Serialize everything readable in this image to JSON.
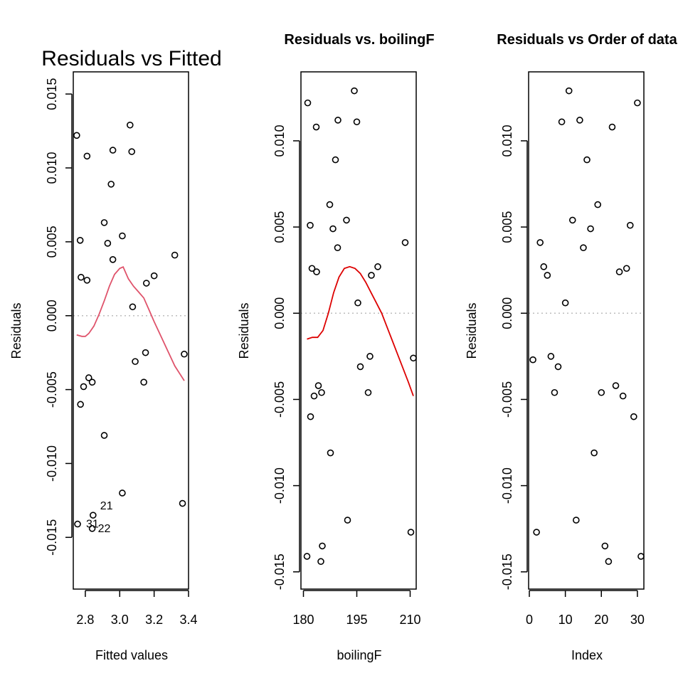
{
  "chart_data": [
    {
      "type": "scatter",
      "title": "Residuals vs Fitted",
      "xlabel": "Fitted values",
      "ylabel": "Residuals",
      "xlim": [
        2.73,
        3.4
      ],
      "ylim": [
        -0.0185,
        0.0165
      ],
      "xticks": [
        2.8,
        3.0,
        3.2,
        3.4
      ],
      "xtick_labels": [
        "2.8",
        "3.0",
        "3.2",
        "3.4"
      ],
      "yticks": [
        -0.015,
        -0.01,
        -0.005,
        0.0,
        0.005,
        0.01,
        0.015
      ],
      "ytick_labels": [
        "-0.015",
        "-0.010",
        "-0.005",
        "0.000",
        "0.005",
        "0.010",
        "0.015"
      ],
      "reference_line": 0,
      "points": [
        {
          "x": 2.75,
          "y": 0.0122
        },
        {
          "x": 2.755,
          "y": -0.0141
        },
        {
          "x": 2.77,
          "y": 0.0051
        },
        {
          "x": 2.775,
          "y": 0.0026
        },
        {
          "x": 2.772,
          "y": -0.006
        },
        {
          "x": 2.79,
          "y": -0.0048
        },
        {
          "x": 2.81,
          "y": 0.0108
        },
        {
          "x": 2.81,
          "y": 0.0024
        },
        {
          "x": 2.82,
          "y": -0.0042
        },
        {
          "x": 2.84,
          "y": -0.0045
        },
        {
          "x": 2.845,
          "y": -0.0135
        },
        {
          "x": 2.84,
          "y": -0.0144
        },
        {
          "x": 2.91,
          "y": 0.0063
        },
        {
          "x": 2.91,
          "y": -0.0081
        },
        {
          "x": 2.93,
          "y": 0.0049
        },
        {
          "x": 2.95,
          "y": 0.0089
        },
        {
          "x": 2.96,
          "y": 0.0112
        },
        {
          "x": 2.96,
          "y": 0.0038
        },
        {
          "x": 3.015,
          "y": 0.0054
        },
        {
          "x": 3.015,
          "y": -0.012
        },
        {
          "x": 3.06,
          "y": 0.0129
        },
        {
          "x": 3.07,
          "y": 0.0111
        },
        {
          "x": 3.075,
          "y": 0.0006
        },
        {
          "x": 3.09,
          "y": -0.0031
        },
        {
          "x": 3.14,
          "y": -0.0045
        },
        {
          "x": 3.15,
          "y": -0.0025
        },
        {
          "x": 3.155,
          "y": 0.0022
        },
        {
          "x": 3.2,
          "y": 0.0027
        },
        {
          "x": 3.32,
          "y": 0.0041
        },
        {
          "x": 3.365,
          "y": -0.0127
        },
        {
          "x": 3.375,
          "y": -0.0026
        }
      ],
      "point_labels": [
        {
          "x": 2.845,
          "y": -0.0135,
          "text": "21"
        },
        {
          "x": 2.84,
          "y": -0.0144,
          "text": "22"
        },
        {
          "x": 2.755,
          "y": -0.0141,
          "text": "31"
        }
      ],
      "smoother": {
        "color": "#DF536B",
        "x": [
          2.75,
          2.78,
          2.8,
          2.82,
          2.85,
          2.88,
          2.91,
          2.94,
          2.97,
          3.0,
          3.02,
          3.05,
          3.08,
          3.11,
          3.14,
          3.17,
          3.2,
          3.24,
          3.28,
          3.32,
          3.375
        ],
        "y": [
          -0.0013,
          -0.0014,
          -0.0014,
          -0.0012,
          -0.0007,
          0.0001,
          0.001,
          0.002,
          0.0028,
          0.0032,
          0.0033,
          0.0025,
          0.002,
          0.0016,
          0.0012,
          0.0004,
          -0.0004,
          -0.0014,
          -0.0024,
          -0.0034,
          -0.0044
        ]
      }
    },
    {
      "type": "scatter",
      "title": "Residuals vs. boilingF",
      "xlabel": "boilingF",
      "ylabel": "Residuals",
      "xlim": [
        179.3,
        211.7
      ],
      "ylim": [
        -0.016,
        0.014
      ],
      "xticks": [
        180,
        195,
        210
      ],
      "xtick_labels": [
        "180",
        "195",
        "210"
      ],
      "yticks": [
        -0.015,
        -0.01,
        -0.005,
        0.0,
        0.005,
        0.01
      ],
      "ytick_labels": [
        "-0.015",
        "-0.010",
        "-0.005",
        "0.000",
        "0.005",
        "0.010"
      ],
      "reference_line": 0,
      "points": [
        {
          "x": 181.0,
          "y": -0.0141
        },
        {
          "x": 181.2,
          "y": 0.0122
        },
        {
          "x": 181.9,
          "y": 0.0051
        },
        {
          "x": 182.0,
          "y": -0.006
        },
        {
          "x": 182.4,
          "y": 0.0026
        },
        {
          "x": 183.0,
          "y": -0.0048
        },
        {
          "x": 183.6,
          "y": 0.0108
        },
        {
          "x": 183.7,
          "y": 0.0024
        },
        {
          "x": 184.2,
          "y": -0.0042
        },
        {
          "x": 184.9,
          "y": -0.0144
        },
        {
          "x": 185.1,
          "y": -0.0046
        },
        {
          "x": 185.3,
          "y": -0.0135
        },
        {
          "x": 187.4,
          "y": 0.0063
        },
        {
          "x": 187.6,
          "y": -0.0081
        },
        {
          "x": 188.3,
          "y": 0.0049
        },
        {
          "x": 189.0,
          "y": 0.0089
        },
        {
          "x": 189.6,
          "y": 0.0038
        },
        {
          "x": 189.7,
          "y": 0.0112
        },
        {
          "x": 192.1,
          "y": 0.0054
        },
        {
          "x": 192.4,
          "y": -0.012
        },
        {
          "x": 194.3,
          "y": 0.0129
        },
        {
          "x": 195.0,
          "y": 0.0111
        },
        {
          "x": 195.3,
          "y": 0.0006
        },
        {
          "x": 196.0,
          "y": -0.0031
        },
        {
          "x": 198.2,
          "y": -0.0046
        },
        {
          "x": 198.7,
          "y": -0.0025
        },
        {
          "x": 199.1,
          "y": 0.0022
        },
        {
          "x": 200.9,
          "y": 0.0027
        },
        {
          "x": 208.6,
          "y": 0.0041
        },
        {
          "x": 210.2,
          "y": -0.0127
        },
        {
          "x": 210.9,
          "y": -0.0026
        }
      ],
      "smoother": {
        "color": "#DD0000",
        "x": [
          181.0,
          182.5,
          184.0,
          185.5,
          187.0,
          188.5,
          190.0,
          191.5,
          193.0,
          194.5,
          196.0,
          197.5,
          199.0,
          200.5,
          202.0,
          203.5,
          205.0,
          206.5,
          208.0,
          209.5,
          210.9
        ],
        "y": [
          -0.0015,
          -0.0014,
          -0.0014,
          -0.001,
          0.0,
          0.0012,
          0.0021,
          0.0026,
          0.0027,
          0.0026,
          0.0023,
          0.0018,
          0.0012,
          0.0006,
          0.0,
          -0.0008,
          -0.0016,
          -0.0024,
          -0.0032,
          -0.004,
          -0.0048
        ]
      }
    },
    {
      "type": "scatter",
      "title": "Residuals vs Order of data",
      "xlabel": "Index",
      "ylabel": "Residuals",
      "xlim": [
        -0.2,
        31.8
      ],
      "ylim": [
        -0.016,
        0.014
      ],
      "xticks": [
        0,
        10,
        20,
        30
      ],
      "xtick_labels": [
        "0",
        "10",
        "20",
        "30"
      ],
      "yticks": [
        -0.015,
        -0.01,
        -0.005,
        0.0,
        0.005,
        0.01
      ],
      "ytick_labels": [
        "-0.015",
        "-0.010",
        "-0.005",
        "0.000",
        "0.005",
        "0.010"
      ],
      "reference_line": 0,
      "points": [
        {
          "x": 1,
          "y": -0.0027
        },
        {
          "x": 2,
          "y": -0.0127
        },
        {
          "x": 3,
          "y": 0.0041
        },
        {
          "x": 4,
          "y": 0.0027
        },
        {
          "x": 5,
          "y": 0.0022
        },
        {
          "x": 6,
          "y": -0.0025
        },
        {
          "x": 7,
          "y": -0.0046
        },
        {
          "x": 8,
          "y": -0.0031
        },
        {
          "x": 9,
          "y": 0.0111
        },
        {
          "x": 10,
          "y": 0.0006
        },
        {
          "x": 11,
          "y": 0.0129
        },
        {
          "x": 12,
          "y": 0.0054
        },
        {
          "x": 13,
          "y": -0.012
        },
        {
          "x": 14,
          "y": 0.0112
        },
        {
          "x": 15,
          "y": 0.0038
        },
        {
          "x": 16,
          "y": 0.0089
        },
        {
          "x": 17,
          "y": 0.0049
        },
        {
          "x": 18,
          "y": -0.0081
        },
        {
          "x": 19,
          "y": 0.0063
        },
        {
          "x": 20,
          "y": -0.0046
        },
        {
          "x": 21,
          "y": -0.0135
        },
        {
          "x": 22,
          "y": -0.0144
        },
        {
          "x": 23,
          "y": 0.0108
        },
        {
          "x": 24,
          "y": -0.0042
        },
        {
          "x": 25,
          "y": 0.0024
        },
        {
          "x": 26,
          "y": -0.0048
        },
        {
          "x": 27,
          "y": 0.0026
        },
        {
          "x": 28,
          "y": 0.0051
        },
        {
          "x": 29,
          "y": -0.006
        },
        {
          "x": 30,
          "y": 0.0122
        },
        {
          "x": 31,
          "y": -0.0141
        }
      ]
    }
  ]
}
